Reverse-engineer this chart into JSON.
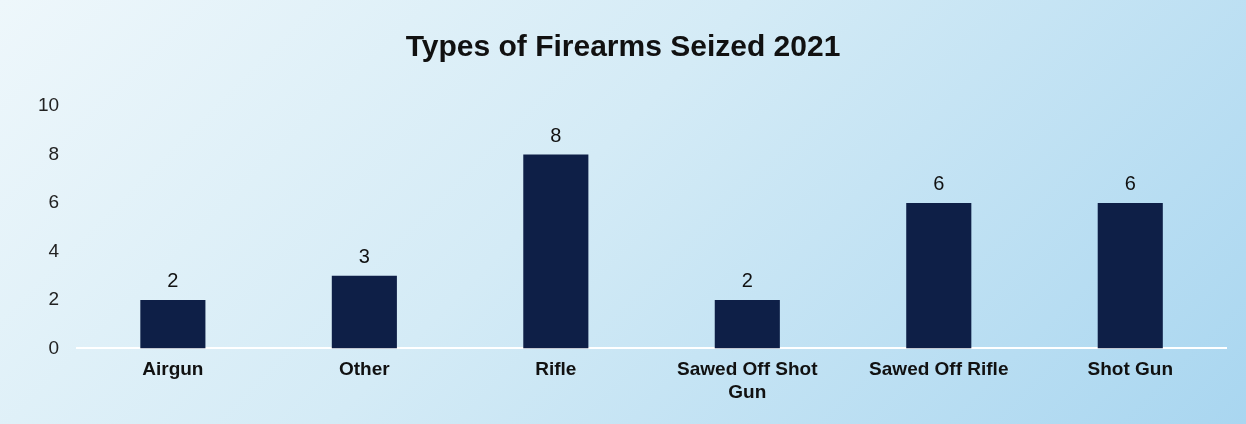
{
  "chart_data": {
    "type": "bar",
    "title": "Types of Firearms Seized 2021",
    "categories": [
      [
        "Airgun"
      ],
      [
        "Other"
      ],
      [
        "Rifle"
      ],
      [
        "Sawed Off Shot",
        "Gun"
      ],
      [
        "Sawed Off Rifle"
      ],
      [
        "Shot Gun"
      ]
    ],
    "values": [
      2,
      3,
      8,
      2,
      6,
      6
    ],
    "color": "#0e1f47",
    "ylim": [
      0,
      10
    ],
    "yticks": [
      0,
      2,
      4,
      6,
      8,
      10
    ],
    "grid": false,
    "data_labels": true
  }
}
